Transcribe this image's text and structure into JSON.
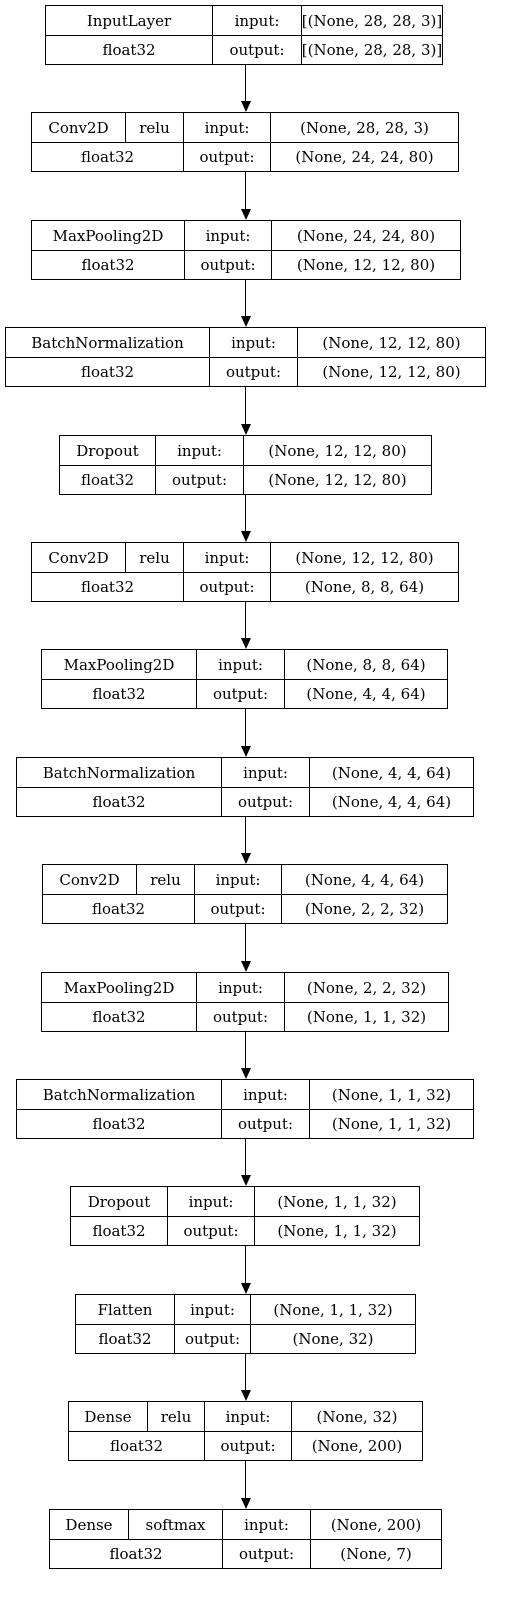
{
  "diagram": {
    "labels": {
      "input": "input:",
      "output": "output:"
    },
    "layers": [
      {
        "name": "InputLayer",
        "dtype": "float32",
        "input_shape": "[(None, 28, 28, 3)]",
        "output_shape": "[(None, 28, 28, 3)]"
      },
      {
        "name": "Conv2D",
        "activation": "relu",
        "dtype": "float32",
        "input_shape": "(None, 28, 28, 3)",
        "output_shape": "(None, 24, 24, 80)"
      },
      {
        "name": "MaxPooling2D",
        "dtype": "float32",
        "input_shape": "(None, 24, 24, 80)",
        "output_shape": "(None, 12, 12, 80)"
      },
      {
        "name": "BatchNormalization",
        "dtype": "float32",
        "input_shape": "(None, 12, 12, 80)",
        "output_shape": "(None, 12, 12, 80)"
      },
      {
        "name": "Dropout",
        "dtype": "float32",
        "input_shape": "(None, 12, 12, 80)",
        "output_shape": "(None, 12, 12, 80)"
      },
      {
        "name": "Conv2D",
        "activation": "relu",
        "dtype": "float32",
        "input_shape": "(None, 12, 12, 80)",
        "output_shape": "(None, 8, 8, 64)"
      },
      {
        "name": "MaxPooling2D",
        "dtype": "float32",
        "input_shape": "(None, 8, 8, 64)",
        "output_shape": "(None, 4, 4, 64)"
      },
      {
        "name": "BatchNormalization",
        "dtype": "float32",
        "input_shape": "(None, 4, 4, 64)",
        "output_shape": "(None, 4, 4, 64)"
      },
      {
        "name": "Conv2D",
        "activation": "relu",
        "dtype": "float32",
        "input_shape": "(None, 4, 4, 64)",
        "output_shape": "(None, 2, 2, 32)"
      },
      {
        "name": "MaxPooling2D",
        "dtype": "float32",
        "input_shape": "(None, 2, 2, 32)",
        "output_shape": "(None, 1, 1, 32)"
      },
      {
        "name": "BatchNormalization",
        "dtype": "float32",
        "input_shape": "(None, 1, 1, 32)",
        "output_shape": "(None, 1, 1, 32)"
      },
      {
        "name": "Dropout",
        "dtype": "float32",
        "input_shape": "(None, 1, 1, 32)",
        "output_shape": "(None, 1, 1, 32)"
      },
      {
        "name": "Flatten",
        "dtype": "float32",
        "input_shape": "(None, 1, 1, 32)",
        "output_shape": "(None, 32)"
      },
      {
        "name": "Dense",
        "activation": "relu",
        "dtype": "float32",
        "input_shape": "(None, 32)",
        "output_shape": "(None, 200)"
      },
      {
        "name": "Dense",
        "activation": "softmax",
        "dtype": "float32",
        "input_shape": "(None, 200)",
        "output_shape": "(None, 7)"
      }
    ]
  }
}
